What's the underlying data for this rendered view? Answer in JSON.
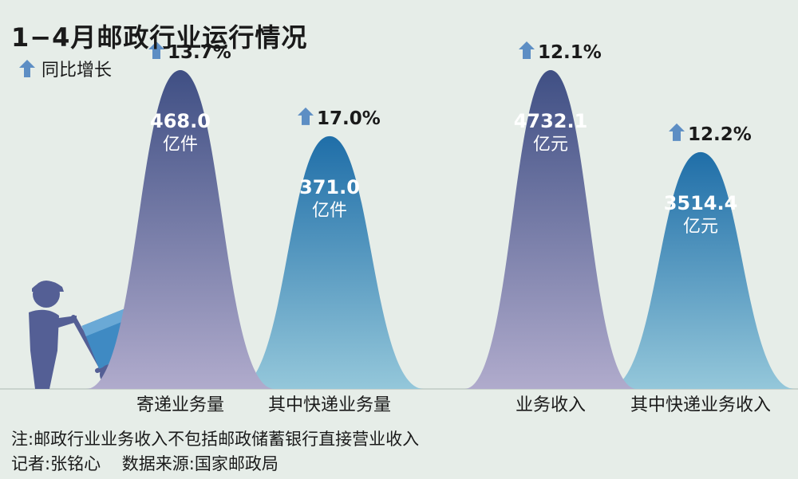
{
  "title": "1−4月邮政行业运行情况",
  "legend_label": "同比增长",
  "notes": {
    "note": "注:邮政行业业务收入不包括邮政储蓄银行直接营业收入",
    "credit": "记者:张铭心    数据来源:国家邮政局"
  },
  "colors": {
    "background": "#e6ede8",
    "baseline": "#c9d3cd",
    "purple_top": "#3f4f84",
    "purple_bottom": "#aaa6c8",
    "blue_top": "#1f6ea8",
    "blue_bottom": "#8fc3d8",
    "arrow": "#5d8ec4",
    "worker": "#545f95",
    "cart_box": "#3f8ac3"
  },
  "chart_data": {
    "type": "area",
    "categories": [
      "寄递业务量",
      "其中快递业务量",
      "业务收入",
      "其中快递业务收入"
    ],
    "series": [
      {
        "values": [
          468.0,
          371.0,
          null,
          null
        ],
        "value_labels": [
          "468.0",
          "371.0",
          "",
          ""
        ],
        "unit": "亿件"
      },
      {
        "values": [
          null,
          null,
          4732.1,
          3514.4
        ],
        "value_labels": [
          "",
          "",
          "4732.1",
          "3514.4"
        ],
        "unit": "亿元"
      }
    ],
    "growth": [
      "13.7%",
      "17.0%",
      "12.1%",
      "12.2%"
    ],
    "styles": [
      "purple",
      "blue",
      "purple",
      "blue"
    ]
  }
}
